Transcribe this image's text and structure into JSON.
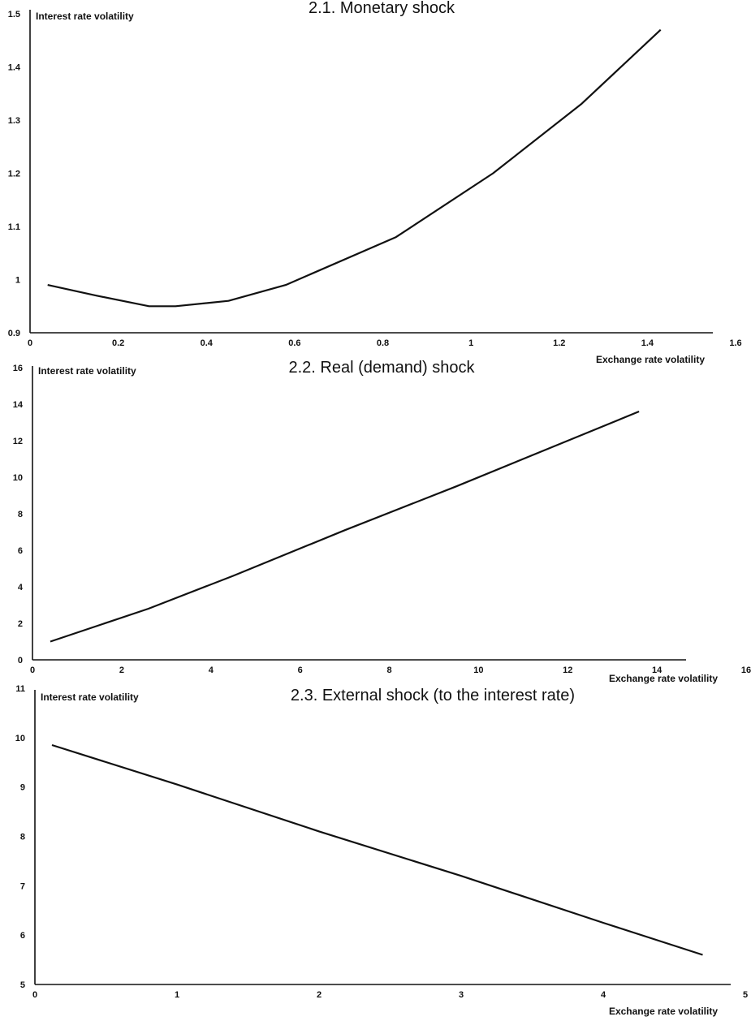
{
  "chart_data": [
    {
      "type": "line",
      "title": "2.1. Monetary shock",
      "xlabel": "Exchange rate volatility",
      "ylabel": "Interest rate volatility",
      "xlim": [
        0,
        1.6
      ],
      "ylim": [
        0.9,
        1.5
      ],
      "xticks": [
        "0",
        "0.2",
        "0.4",
        "0.6",
        "0.8",
        "1",
        "1.2",
        "1.4",
        "1.6"
      ],
      "yticks": [
        "0.9",
        "1",
        "1.1",
        "1.2",
        "1.3",
        "1.4",
        "1.5"
      ],
      "grid": false,
      "x": [
        0.04,
        0.15,
        0.27,
        0.33,
        0.45,
        0.58,
        0.83,
        1.05,
        1.25,
        1.43
      ],
      "y": [
        0.99,
        0.97,
        0.95,
        0.95,
        0.96,
        0.99,
        1.08,
        1.2,
        1.33,
        1.47
      ]
    },
    {
      "type": "line",
      "title": "2.2. Real (demand) shock",
      "xlabel": "Exchange rate volatility",
      "ylabel": "Interest rate volatility",
      "xlim": [
        0,
        16
      ],
      "ylim": [
        0,
        16
      ],
      "xticks": [
        "0",
        "2",
        "4",
        "6",
        "8",
        "10",
        "12",
        "14",
        "16"
      ],
      "yticks": [
        "0",
        "2",
        "4",
        "6",
        "8",
        "10",
        "12",
        "14",
        "16"
      ],
      "grid": false,
      "x": [
        0.4,
        2.6,
        4.5,
        7.0,
        9.5,
        12.0,
        13.6
      ],
      "y": [
        1.0,
        2.8,
        4.6,
        7.1,
        9.5,
        12.0,
        13.6
      ]
    },
    {
      "type": "line",
      "title": "2.3. External shock (to the interest rate)",
      "xlabel": "Exchange rate volatility",
      "ylabel": "Interest rate volatility",
      "xlim": [
        0,
        5
      ],
      "ylim": [
        5,
        11
      ],
      "xticks": [
        "0",
        "1",
        "2",
        "3",
        "4",
        "5"
      ],
      "yticks": [
        "5",
        "6",
        "7",
        "8",
        "9",
        "10",
        "11"
      ],
      "grid": false,
      "x": [
        0.12,
        1.0,
        2.0,
        3.0,
        4.0,
        4.7
      ],
      "y": [
        9.85,
        9.05,
        8.1,
        7.2,
        6.25,
        5.6
      ]
    }
  ]
}
